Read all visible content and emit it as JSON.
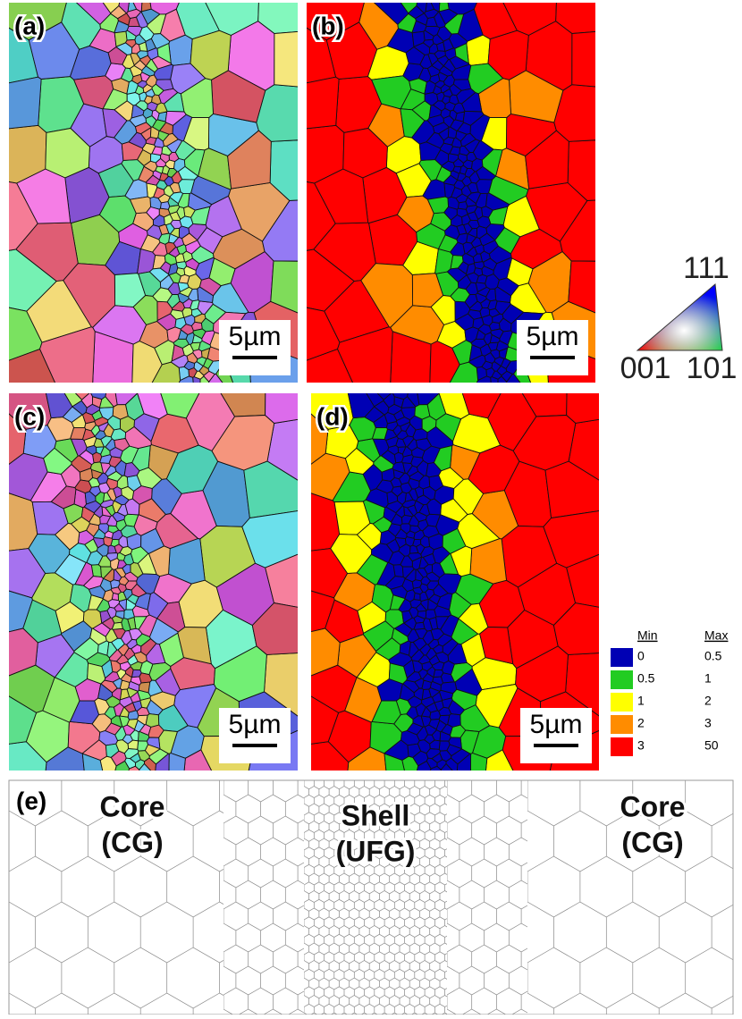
{
  "panels": [
    {
      "label": "(a)",
      "scale_bar": "5µm"
    },
    {
      "label": "(b)",
      "scale_bar": "5µm"
    },
    {
      "label": "(c)",
      "scale_bar": "5µm"
    },
    {
      "label": "(d)",
      "scale_bar": "5µm"
    },
    {
      "label": "(e)",
      "regions": [
        {
          "name": "Core",
          "subtitle": "(CG)"
        },
        {
          "name": "Shell",
          "subtitle": "(UFG)"
        },
        {
          "name": "Core",
          "subtitle": "(CG)"
        }
      ]
    }
  ],
  "ipf_key": {
    "corners": [
      "111",
      "001",
      "101"
    ]
  },
  "legend": {
    "headers": [
      "Min",
      "Max"
    ],
    "rows": [
      {
        "color": "#0000b4",
        "min": "0",
        "max": "0.5"
      },
      {
        "color": "#22cc22",
        "min": "0.5",
        "max": "1"
      },
      {
        "color": "#ffff00",
        "min": "1",
        "max": "2"
      },
      {
        "color": "#ff8c00",
        "min": "2",
        "max": "3"
      },
      {
        "color": "#ff0000",
        "min": "3",
        "max": "50"
      }
    ]
  }
}
